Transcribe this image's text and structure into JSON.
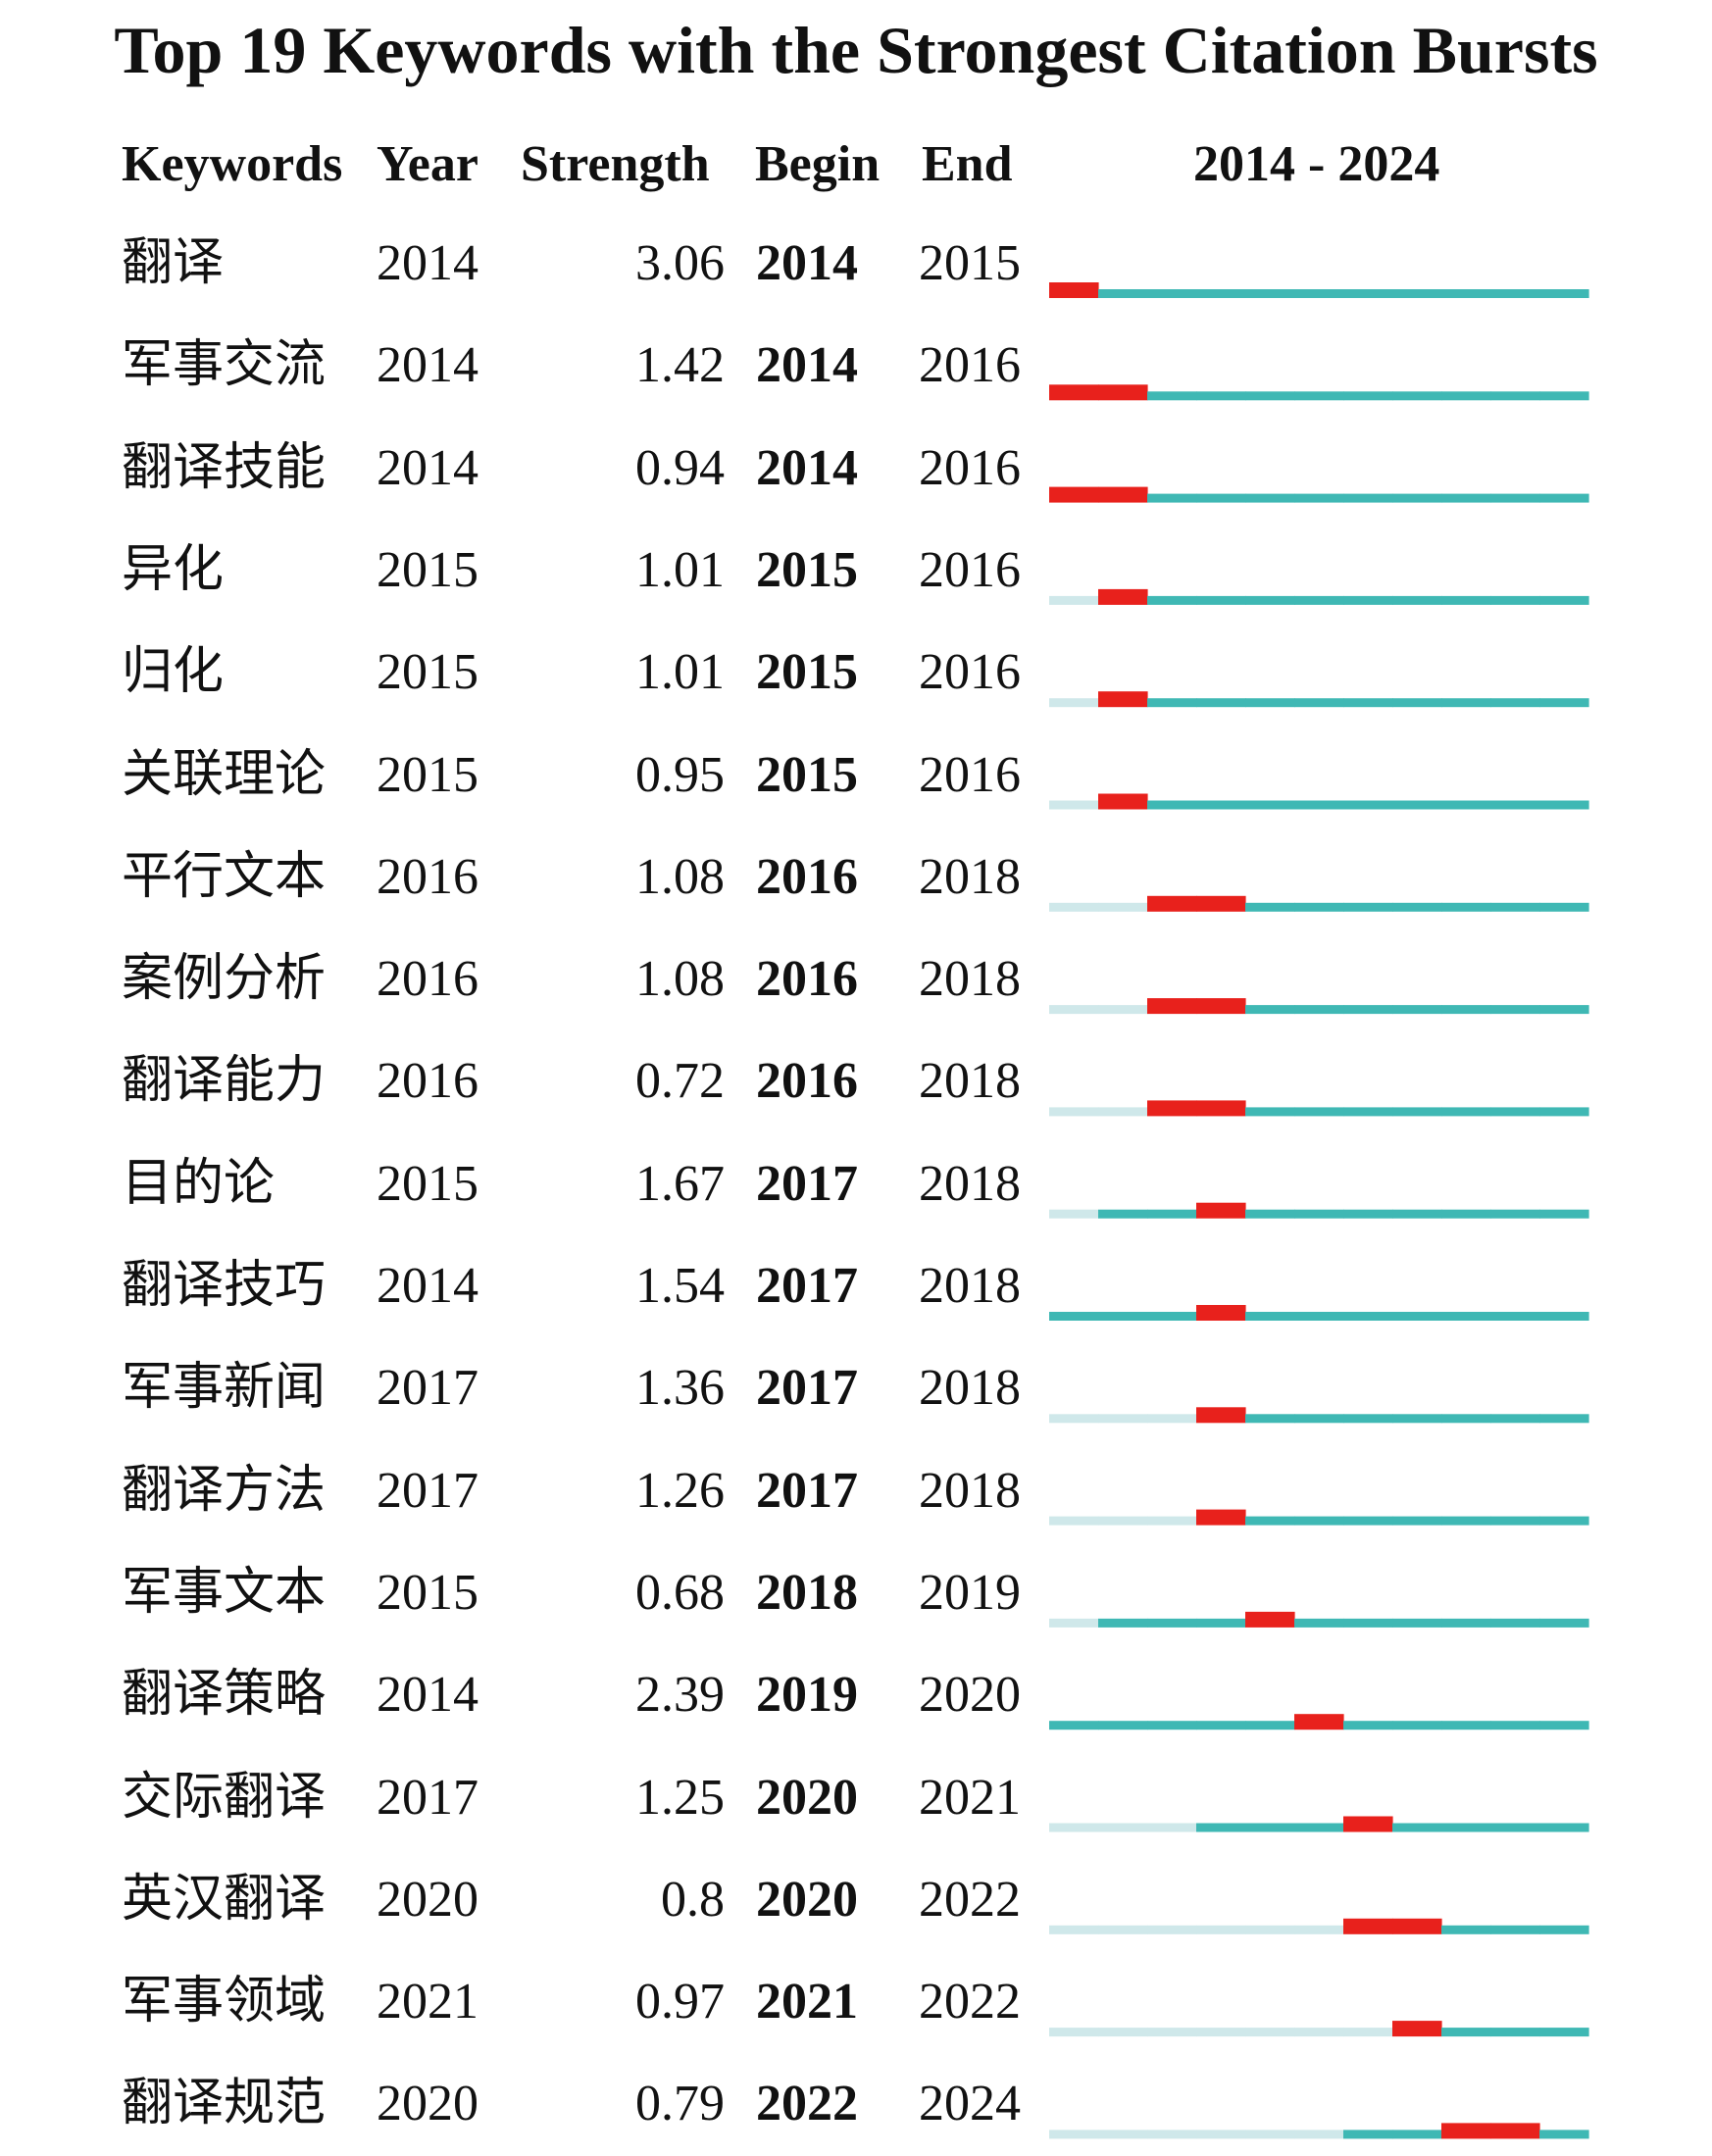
{
  "title": "Top 19 Keywords with the Strongest Citation Bursts",
  "headers": {
    "keywords": "Keywords",
    "year": "Year",
    "strength": "Strength",
    "begin": "Begin",
    "end": "End",
    "range": "2014 - 2024"
  },
  "chart_data": {
    "type": "table",
    "timeline_start": 2014,
    "timeline_end": 2024,
    "colors": {
      "burst": "#e8211c",
      "active": "#3fb8b4",
      "inactive": "#cfe8ea"
    },
    "rows": [
      {
        "keyword": "翻译",
        "year": "2014",
        "strength": "3.06",
        "begin": "2014",
        "end": "2015"
      },
      {
        "keyword": "军事交流",
        "year": "2014",
        "strength": "1.42",
        "begin": "2014",
        "end": "2016"
      },
      {
        "keyword": "翻译技能",
        "year": "2014",
        "strength": "0.94",
        "begin": "2014",
        "end": "2016"
      },
      {
        "keyword": "异化",
        "year": "2015",
        "strength": "1.01",
        "begin": "2015",
        "end": "2016"
      },
      {
        "keyword": "归化",
        "year": "2015",
        "strength": "1.01",
        "begin": "2015",
        "end": "2016"
      },
      {
        "keyword": "关联理论",
        "year": "2015",
        "strength": "0.95",
        "begin": "2015",
        "end": "2016"
      },
      {
        "keyword": "平行文本",
        "year": "2016",
        "strength": "1.08",
        "begin": "2016",
        "end": "2018"
      },
      {
        "keyword": "案例分析",
        "year": "2016",
        "strength": "1.08",
        "begin": "2016",
        "end": "2018"
      },
      {
        "keyword": "翻译能力",
        "year": "2016",
        "strength": "0.72",
        "begin": "2016",
        "end": "2018"
      },
      {
        "keyword": "目的论",
        "year": "2015",
        "strength": "1.67",
        "begin": "2017",
        "end": "2018"
      },
      {
        "keyword": "翻译技巧",
        "year": "2014",
        "strength": "1.54",
        "begin": "2017",
        "end": "2018"
      },
      {
        "keyword": "军事新闻",
        "year": "2017",
        "strength": "1.36",
        "begin": "2017",
        "end": "2018"
      },
      {
        "keyword": "翻译方法",
        "year": "2017",
        "strength": "1.26",
        "begin": "2017",
        "end": "2018"
      },
      {
        "keyword": "军事文本",
        "year": "2015",
        "strength": "0.68",
        "begin": "2018",
        "end": "2019"
      },
      {
        "keyword": "翻译策略",
        "year": "2014",
        "strength": "2.39",
        "begin": "2019",
        "end": "2020"
      },
      {
        "keyword": "交际翻译",
        "year": "2017",
        "strength": "1.25",
        "begin": "2020",
        "end": "2021"
      },
      {
        "keyword": "英汉翻译",
        "year": "2020",
        "strength": "0.8",
        "begin": "2020",
        "end": "2022"
      },
      {
        "keyword": "军事领域",
        "year": "2021",
        "strength": "0.97",
        "begin": "2021",
        "end": "2022"
      },
      {
        "keyword": "翻译规范",
        "year": "2020",
        "strength": "0.79",
        "begin": "2022",
        "end": "2024"
      }
    ]
  }
}
